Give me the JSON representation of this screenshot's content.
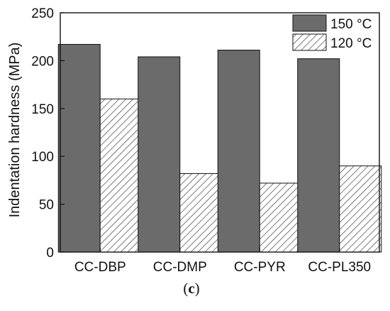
{
  "panel_label": {
    "open": "(",
    "letter": "c",
    "close": ")"
  },
  "chart_data": {
    "type": "bar",
    "title": "",
    "xlabel": "",
    "ylabel": "Indentation hardness (MPa)",
    "ylim": [
      0,
      250
    ],
    "yticks": [
      0,
      50,
      100,
      150,
      200,
      250
    ],
    "categories": [
      "CC-DBP",
      "CC-DMP",
      "CC-PYR",
      "CC-PL350"
    ],
    "series": [
      {
        "name": "150 °C",
        "values": [
          217,
          204,
          211,
          202
        ],
        "fill": "solid",
        "color": "#6b6b6b"
      },
      {
        "name": "120 °C",
        "values": [
          160,
          82,
          72,
          90
        ],
        "fill": "hatched",
        "color": "#ffffff"
      }
    ],
    "legend_position": "top-right",
    "grid": false
  }
}
